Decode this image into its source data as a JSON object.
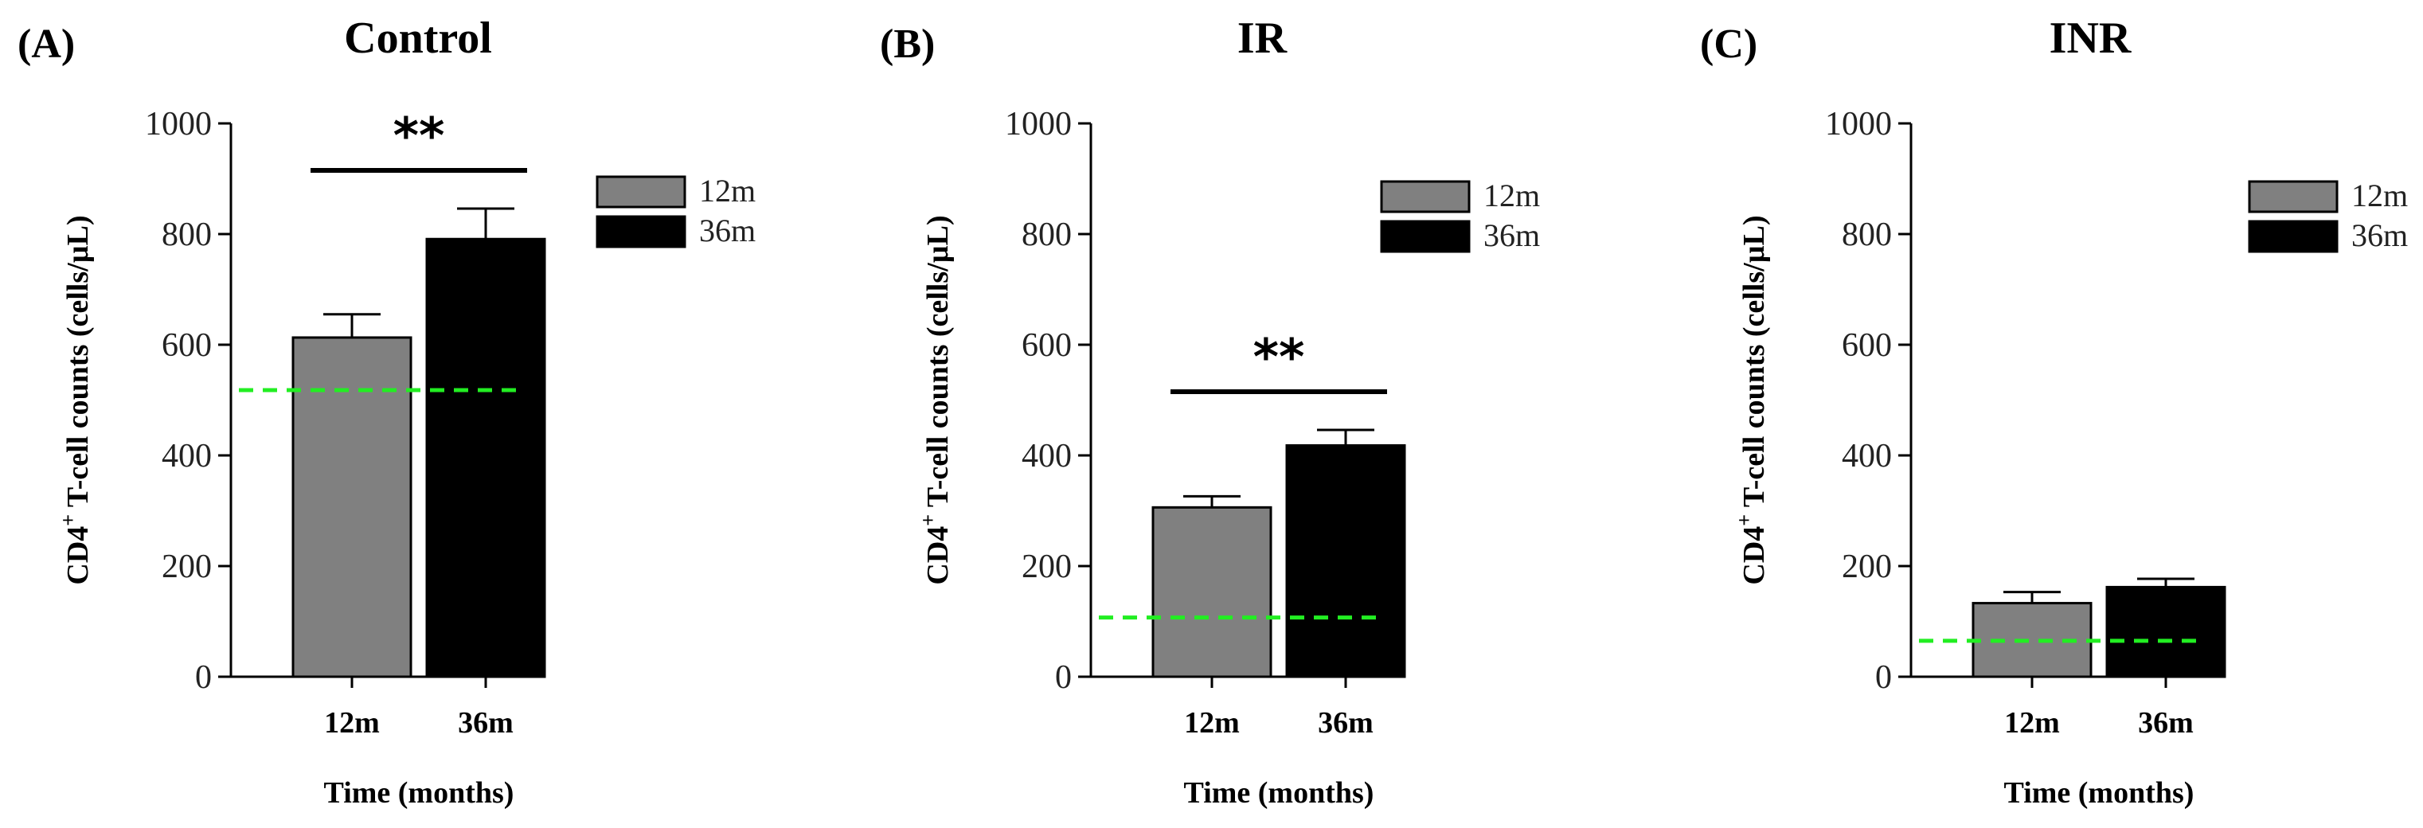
{
  "chart_data": [
    {
      "panel_letter": "(A)",
      "title": "Control",
      "type": "bar",
      "ylabel_main": "CD4",
      "ylabel_sup": "+",
      "ylabel_rest": " T-cell counts (cells/µL)",
      "xlabel": "Time (months)",
      "ylim": [
        0,
        1000
      ],
      "yticks": [
        "0",
        "200",
        "400",
        "600",
        "800",
        "1000"
      ],
      "categories": [
        "12m",
        "36m"
      ],
      "values": [
        613,
        791
      ],
      "errors": [
        42,
        55
      ],
      "colors": [
        "#808080",
        "#000000"
      ],
      "reference_line": 518,
      "reference_color": "#22ee22",
      "significance": "**",
      "legend": [
        "12m",
        "36m"
      ]
    },
    {
      "panel_letter": "(B)",
      "title": "IR",
      "type": "bar",
      "ylabel_main": "CD4",
      "ylabel_sup": "+",
      "ylabel_rest": " T-cell counts (cells/µL)",
      "xlabel": "Time (months)",
      "ylim": [
        0,
        1000
      ],
      "yticks": [
        "0",
        "200",
        "400",
        "600",
        "800",
        "1000"
      ],
      "categories": [
        "12m",
        "36m"
      ],
      "values": [
        306,
        418
      ],
      "errors": [
        20,
        28
      ],
      "colors": [
        "#808080",
        "#000000"
      ],
      "reference_line": 107,
      "reference_color": "#22ee22",
      "significance": "**",
      "legend": [
        "12m",
        "36m"
      ]
    },
    {
      "panel_letter": "(C)",
      "title": "INR",
      "type": "bar",
      "ylabel_main": "CD4",
      "ylabel_sup": "+",
      "ylabel_rest": " T-cell counts (cells/µL)",
      "xlabel": "Time (months)",
      "ylim": [
        0,
        1000
      ],
      "yticks": [
        "0",
        "200",
        "400",
        "600",
        "800",
        "1000"
      ],
      "categories": [
        "12m",
        "36m"
      ],
      "values": [
        133,
        162
      ],
      "errors": [
        20,
        15
      ],
      "colors": [
        "#808080",
        "#000000"
      ],
      "reference_line": 65,
      "reference_color": "#22ee22",
      "significance": "",
      "legend": [
        "12m",
        "36m"
      ]
    }
  ]
}
